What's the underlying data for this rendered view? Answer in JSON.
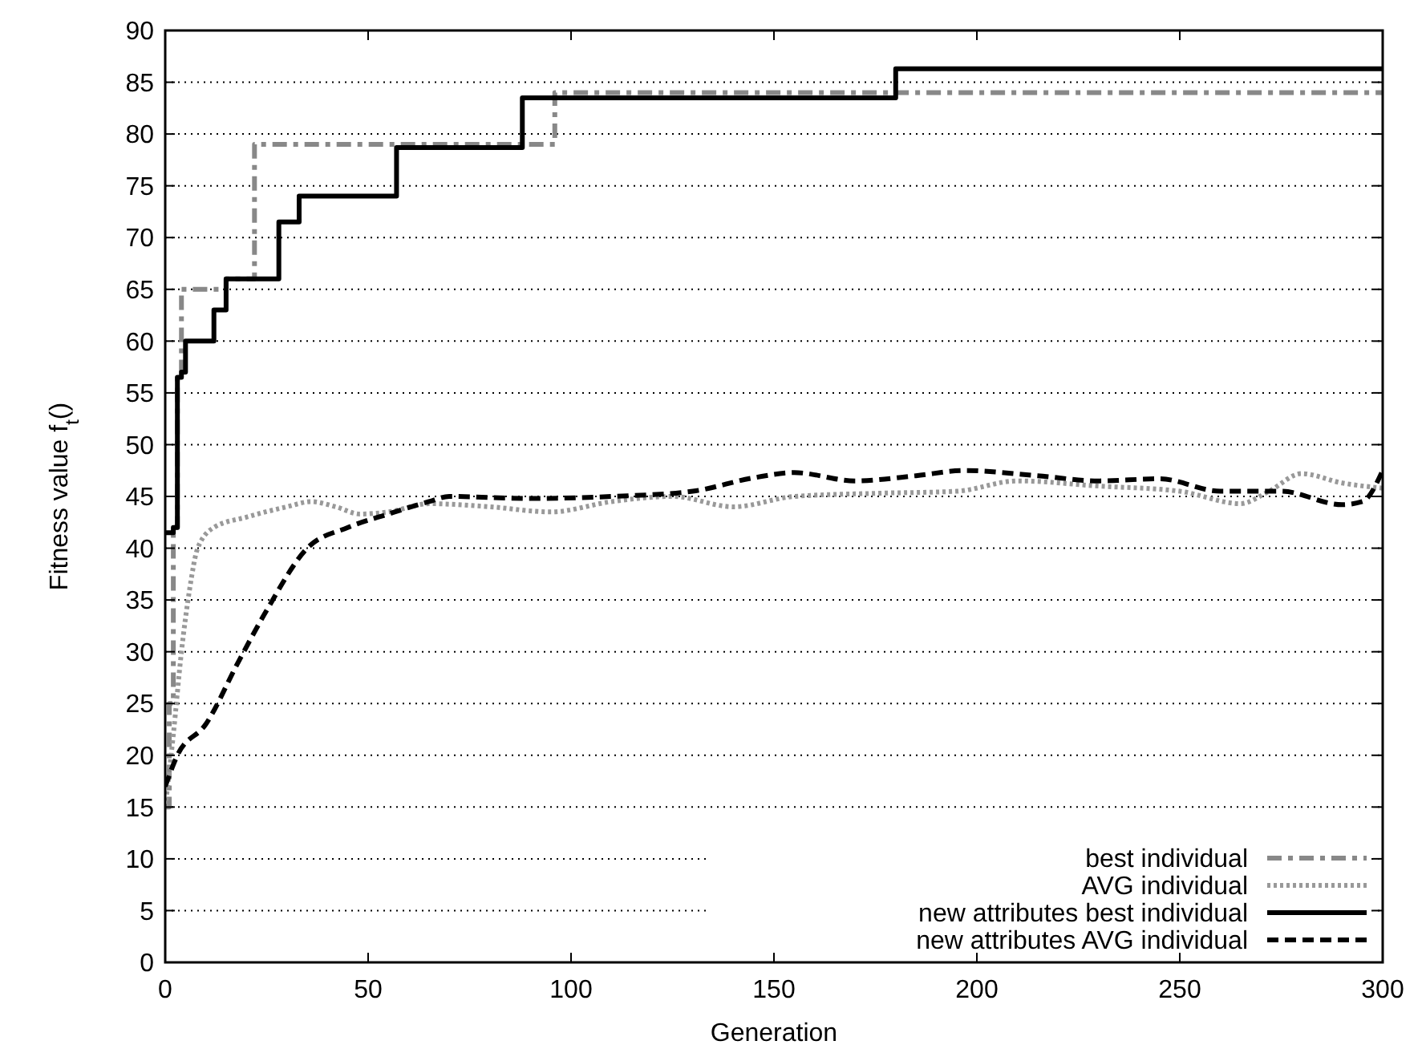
{
  "chart_data": {
    "type": "line",
    "xlabel": "Generation",
    "ylabel": "Fitness value f$_{t}$()",
    "xlim": [
      0,
      300
    ],
    "ylim": [
      0,
      90
    ],
    "xticks": [
      0,
      50,
      100,
      150,
      200,
      250,
      300
    ],
    "yticks": [
      0,
      5,
      10,
      15,
      20,
      25,
      30,
      35,
      40,
      45,
      50,
      55,
      60,
      65,
      70,
      75,
      80,
      85,
      90
    ],
    "grid": "y",
    "legend": "bottom right",
    "series": [
      {
        "name": "best individual",
        "type": "step",
        "color": "#888888",
        "line_style": "dashdot",
        "x": [
          0,
          1,
          2,
          3,
          4,
          15,
          22,
          96,
          300
        ],
        "values": [
          15,
          25,
          42,
          57,
          65,
          66,
          79,
          84,
          84
        ]
      },
      {
        "name": "AVG individual",
        "color": "#999999",
        "line_style": "dotted",
        "x": [
          0,
          2,
          4,
          6,
          8,
          12,
          20,
          30,
          36,
          42,
          48,
          55,
          65,
          80,
          95,
          110,
          125,
          140,
          155,
          175,
          195,
          210,
          230,
          250,
          265,
          272,
          280,
          290,
          300
        ],
        "values": [
          15,
          22,
          30,
          36,
          40,
          42,
          43,
          44,
          44.5,
          44,
          43.3,
          43.5,
          44.3,
          44,
          43.5,
          44.5,
          45,
          44,
          45,
          45.3,
          45.5,
          46.5,
          46,
          45.5,
          44.3,
          45.5,
          47.2,
          46.3,
          45.8
        ]
      },
      {
        "name": "new attributes best individual",
        "type": "step",
        "color": "#000000",
        "line_style": "solid",
        "x": [
          0,
          2,
          3,
          4,
          5,
          10,
          12,
          14,
          15,
          28,
          33,
          57,
          88,
          180,
          300
        ],
        "values": [
          41.5,
          42,
          56.5,
          57,
          60,
          60,
          63,
          63,
          66,
          71.5,
          74,
          78.7,
          83.5,
          86.3,
          86.3
        ]
      },
      {
        "name": "new attributes AVG individual",
        "color": "#000000",
        "line_style": "dashed",
        "x": [
          0,
          3,
          10,
          18,
          25,
          35,
          45,
          55,
          65,
          70,
          90,
          110,
          130,
          145,
          155,
          170,
          185,
          197,
          215,
          230,
          245,
          260,
          275,
          290,
          295,
          300
        ],
        "values": [
          17,
          20,
          23,
          29,
          34,
          40,
          42,
          43.3,
          44.5,
          45,
          44.8,
          45,
          45.5,
          46.8,
          47.3,
          46.5,
          47,
          47.5,
          47,
          46.5,
          46.7,
          45.5,
          45.5,
          44.2,
          44.5,
          47.5
        ]
      }
    ]
  }
}
